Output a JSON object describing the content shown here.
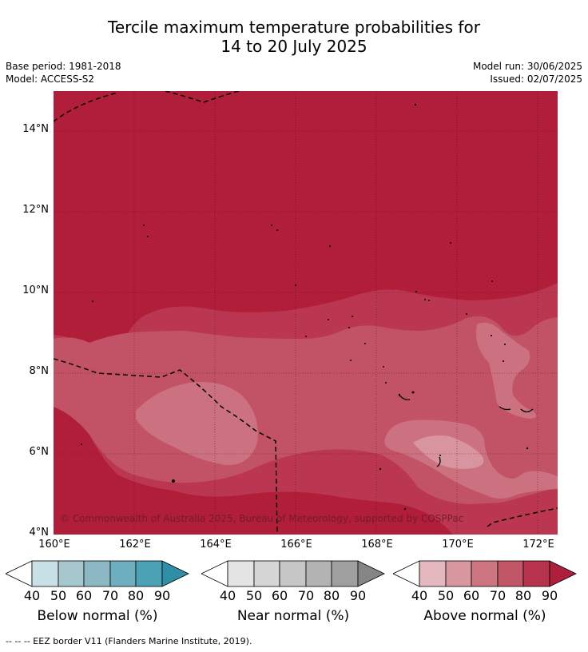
{
  "title_line1": "Tercile maximum temperature probabilities for",
  "title_line2": "14 to 20 July 2025",
  "base_period": "Base period: 1981-2018",
  "model": "Model: ACCESS-S2",
  "model_run": "Model run: 30/06/2025",
  "issued": "Issued: 02/07/2025",
  "copyright": "© Commonwealth of Australia 2025, Bureau of Meteorology, supported by COSPPac",
  "footnote": "--  --  -- EEZ border V11 (Flanders Marine Institute, 2019).",
  "lat_labels": [
    "14°N",
    "12°N",
    "10°N",
    "8°N",
    "6°N",
    "4°N"
  ],
  "lon_labels": [
    "160°E",
    "162°E",
    "164°E",
    "166°E",
    "168°E",
    "170°E",
    "172°E"
  ],
  "colorbars": [
    {
      "title": "Below normal (%)",
      "ticks": [
        "40",
        "50",
        "60",
        "70",
        "80",
        "90"
      ],
      "colors": [
        "#ffffff",
        "#c7e1e7",
        "#a7c7ce",
        "#8cb8c4",
        "#6dafbf",
        "#4ba2b4",
        "#2f8fa6"
      ]
    },
    {
      "title": "Near normal (%)",
      "ticks": [
        "40",
        "50",
        "60",
        "70",
        "80",
        "90"
      ],
      "colors": [
        "#ffffff",
        "#e4e4e4",
        "#d6d6d6",
        "#c6c6c6",
        "#b3b3b3",
        "#9f9f9f",
        "#858585"
      ]
    },
    {
      "title": "Above normal (%)",
      "ticks": [
        "40",
        "50",
        "60",
        "70",
        "80",
        "90"
      ],
      "colors": [
        "#ffffff",
        "#e5b8bf",
        "#d8979f",
        "#cc7580",
        "#c05666",
        "#b7334d",
        "#ae1f3c"
      ]
    }
  ],
  "map_colors": {
    "c90": "#b01e3a",
    "c80": "#bb3650",
    "c70": "#c25366",
    "c60": "#cc7180",
    "c50": "#d9959f"
  }
}
